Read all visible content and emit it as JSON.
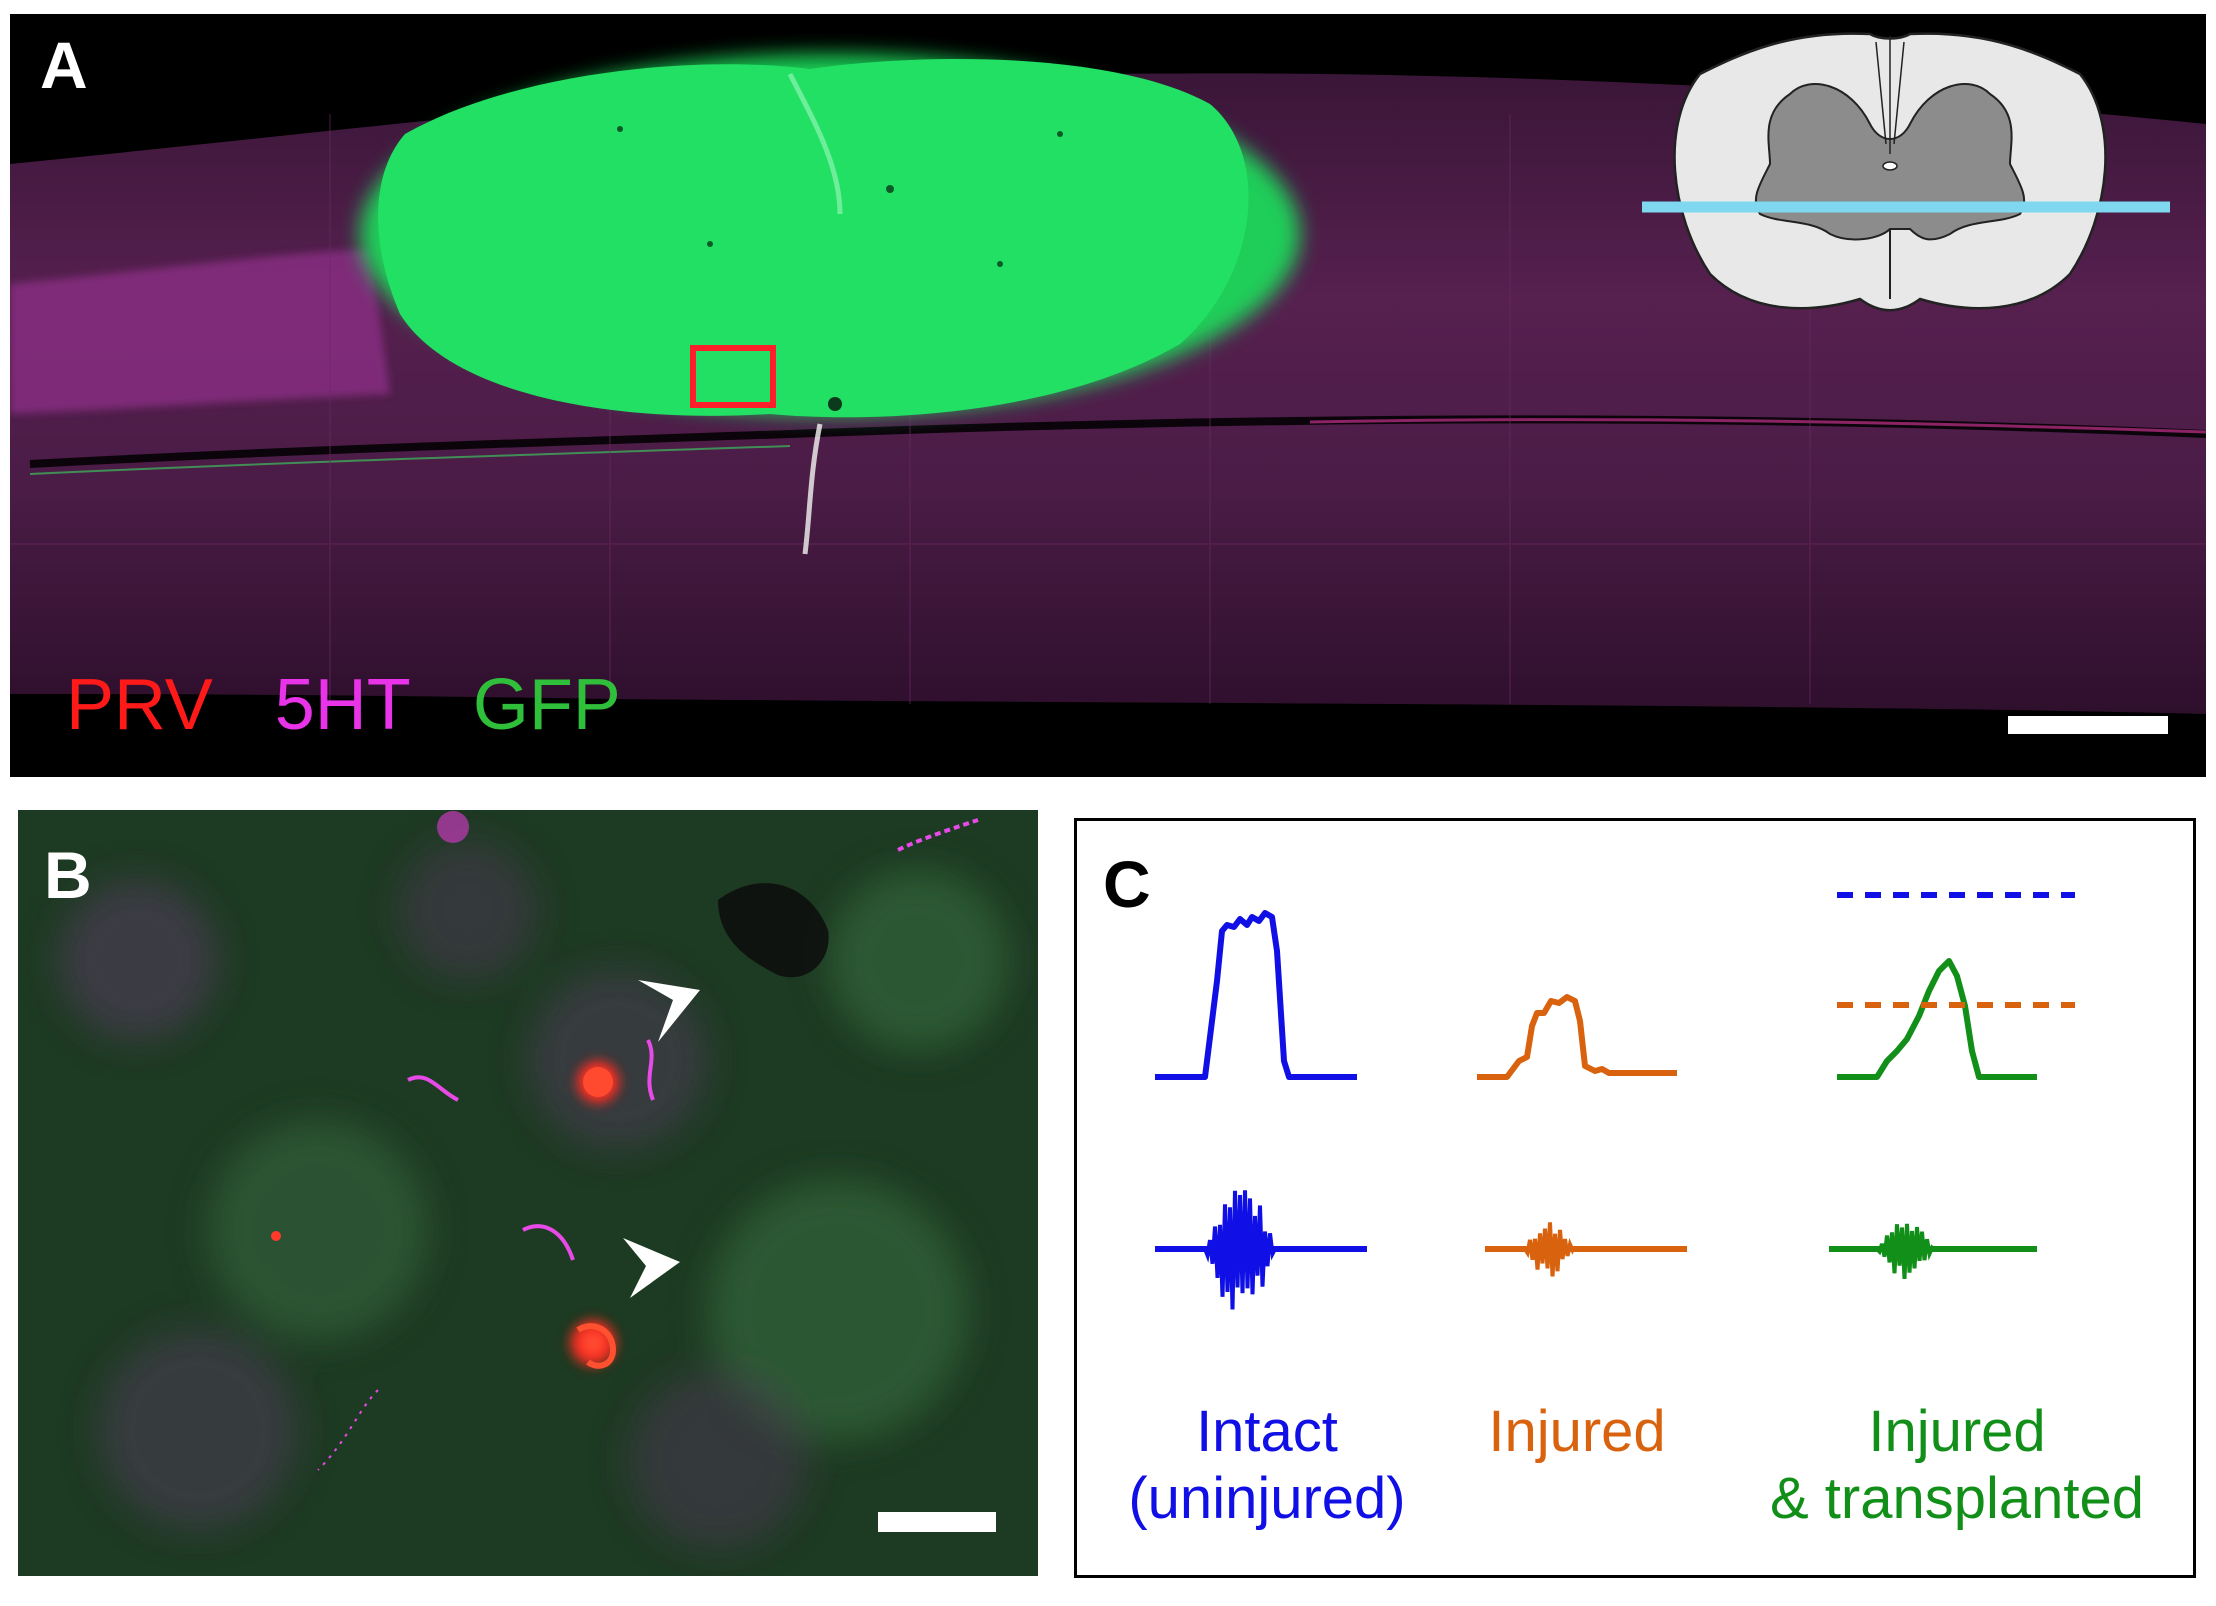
{
  "panel_a": {
    "letter": "A",
    "stains": [
      {
        "label": "PRV",
        "color": "#ff1a1a"
      },
      {
        "label": "5HT",
        "color": "#e833e8"
      },
      {
        "label": "GFP",
        "color": "#2fbf3a"
      }
    ],
    "colors": {
      "tissue": "#5a1e55",
      "graft": "#22e063",
      "inset_box": "#ff1f2a",
      "section_line": "#7fd8f0"
    }
  },
  "panel_b": {
    "letter": "B",
    "colors": {
      "tissue": "#234a2a",
      "prv_cell": "#ff3a2a",
      "fiber": "#e84ae8",
      "arrowhead": "#ffffff"
    }
  },
  "panel_c": {
    "letter": "C",
    "conditions": [
      {
        "line1": "Intact",
        "line2": "(uninjured)",
        "color": "#1010e6"
      },
      {
        "line1": "Injured",
        "line2": "",
        "color": "#d9620f"
      },
      {
        "line1": "Injured",
        "line2": "& transplanted",
        "color": "#118f18"
      }
    ]
  }
}
